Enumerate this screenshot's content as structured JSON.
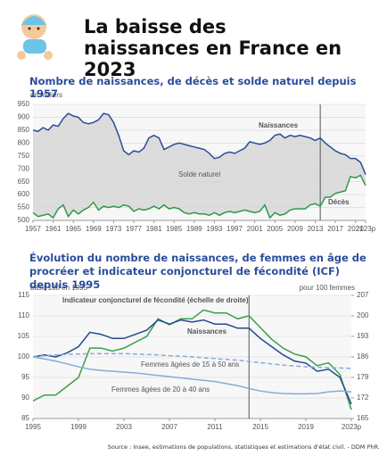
{
  "header": {
    "title": "La baisse des naissances en France en 2023"
  },
  "chart_data": [
    {
      "type": "line",
      "title": "Nombre de naissances, de décès et solde naturel depuis 1957",
      "ylabel": "en milliers",
      "area_label": "Solde naturel",
      "fill_between": true,
      "fill_color": "#dcdcdc",
      "x": [
        1957,
        1958,
        1959,
        1960,
        1961,
        1962,
        1963,
        1964,
        1965,
        1966,
        1967,
        1968,
        1969,
        1970,
        1971,
        1972,
        1973,
        1974,
        1975,
        1976,
        1977,
        1978,
        1979,
        1980,
        1981,
        1982,
        1983,
        1984,
        1985,
        1986,
        1987,
        1988,
        1989,
        1990,
        1991,
        1992,
        1993,
        1994,
        1995,
        1996,
        1997,
        1998,
        1999,
        2000,
        2001,
        2002,
        2003,
        2004,
        2005,
        2006,
        2007,
        2008,
        2009,
        2010,
        2011,
        2012,
        2013,
        2014,
        2015,
        2016,
        2017,
        2018,
        2019,
        2020,
        2021,
        2022,
        2023
      ],
      "series": [
        {
          "name": "Naissances",
          "color": "#2a4d9b",
          "values": [
            850,
            845,
            860,
            850,
            870,
            865,
            895,
            915,
            905,
            900,
            880,
            875,
            880,
            890,
            915,
            910,
            880,
            830,
            770,
            755,
            770,
            765,
            780,
            820,
            830,
            820,
            775,
            785,
            795,
            800,
            795,
            790,
            785,
            780,
            775,
            760,
            740,
            745,
            760,
            765,
            760,
            770,
            780,
            805,
            800,
            795,
            800,
            810,
            830,
            835,
            820,
            830,
            825,
            830,
            825,
            820,
            810,
            820,
            800,
            785,
            770,
            760,
            755,
            740,
            740,
            725,
            678
          ]
        },
        {
          "name": "Décès",
          "color": "#2e9a48",
          "values": [
            530,
            515,
            520,
            525,
            510,
            545,
            560,
            515,
            540,
            525,
            540,
            550,
            570,
            540,
            555,
            550,
            555,
            550,
            560,
            555,
            535,
            545,
            540,
            545,
            555,
            545,
            560,
            545,
            550,
            545,
            530,
            525,
            530,
            525,
            525,
            520,
            530,
            520,
            530,
            535,
            530,
            535,
            540,
            535,
            530,
            535,
            560,
            510,
            530,
            520,
            525,
            540,
            545,
            545,
            545,
            560,
            565,
            555,
            590,
            590,
            605,
            610,
            615,
            670,
            665,
            675,
            635
          ]
        }
      ],
      "xlim": [
        1957,
        2023
      ],
      "xticks": [
        1957,
        1961,
        1965,
        1969,
        1973,
        1977,
        1981,
        1985,
        1989,
        1993,
        1997,
        2001,
        2005,
        2009,
        2013,
        2017,
        2021,
        {
          "value": 2023,
          "label": "2023p"
        }
      ],
      "ylim": [
        500,
        950
      ],
      "yticks": [
        500,
        550,
        600,
        650,
        700,
        750,
        800,
        850,
        900,
        950
      ],
      "grid": true,
      "vline": 2014
    },
    {
      "type": "line",
      "title": "Évolution du nombre de naissances, de femmes en âge de procréer et indicateur conjoncturel de fécondité (ICF) depuis 1995",
      "ylabel": "base 100 en 1995",
      "y2label": "pour 100 femmes",
      "x": [
        1995,
        1996,
        1997,
        1998,
        1999,
        2000,
        2001,
        2002,
        2003,
        2004,
        2005,
        2006,
        2007,
        2008,
        2009,
        2010,
        2011,
        2012,
        2013,
        2014,
        2015,
        2016,
        2017,
        2018,
        2019,
        2020,
        2021,
        2022,
        2023
      ],
      "series": [
        {
          "name": "Indicateur conjoncturel de fécondité (échelle de droite)",
          "color": "#3aa04a",
          "axis": "y2",
          "values": [
            171,
            173,
            173,
            176,
            179,
            189,
            189,
            188,
            189,
            191,
            193,
            199,
            197,
            199,
            199,
            202,
            201,
            201,
            199,
            200,
            196,
            192,
            189,
            187,
            186,
            183,
            184,
            180,
            168
          ]
        },
        {
          "name": "Naissances",
          "color": "#24498f",
          "values": [
            100,
            100.5,
            100,
            101,
            102.5,
            106,
            105.5,
            104.5,
            104.5,
            105.5,
            106.5,
            109,
            108,
            109,
            108.5,
            109,
            108,
            108,
            107,
            107,
            104.5,
            102.5,
            100.5,
            99,
            98.5,
            96.5,
            97,
            95,
            88.5
          ]
        },
        {
          "name": "Femmes âgées de 15 à 50 ans",
          "color": "#86acd6",
          "linestyle": "dashed",
          "values": [
            100,
            100.3,
            100.5,
            100.6,
            100.7,
            100.8,
            100.8,
            100.8,
            100.8,
            100.7,
            100.6,
            100.5,
            100.3,
            100.2,
            100,
            99.8,
            99.6,
            99.4,
            99.2,
            98.9,
            98.6,
            98.3,
            98,
            97.8,
            97.6,
            97.5,
            97.4,
            97.3,
            97.2
          ]
        },
        {
          "name": "Femmes âgées de 20 à 40 ans",
          "color": "#86acd6",
          "values": [
            100,
            99.5,
            99,
            98.3,
            97.6,
            97,
            96.7,
            96.5,
            96.3,
            96.1,
            95.8,
            95.5,
            95.2,
            94.9,
            94.6,
            94.3,
            94,
            93.5,
            93,
            92.3,
            91.7,
            91.3,
            91.1,
            91,
            91,
            91.1,
            91.5,
            91.7,
            91.5
          ]
        }
      ],
      "xlim": [
        1995,
        2023
      ],
      "xticks": [
        1995,
        1999,
        2003,
        2007,
        2011,
        2015,
        2019,
        {
          "value": 2023,
          "label": "2023p"
        }
      ],
      "ylim": [
        85,
        115
      ],
      "yticks": [
        85,
        90,
        95,
        100,
        105,
        110,
        115
      ],
      "y2lim": [
        165,
        207
      ],
      "y2ticks": [
        165,
        172,
        179,
        186,
        193,
        200,
        207
      ],
      "grid": true,
      "vline": 2014
    }
  ],
  "source": "Source : Insee, estimations de populations, statistiques et estimations d'état civil. - DDM PhR."
}
